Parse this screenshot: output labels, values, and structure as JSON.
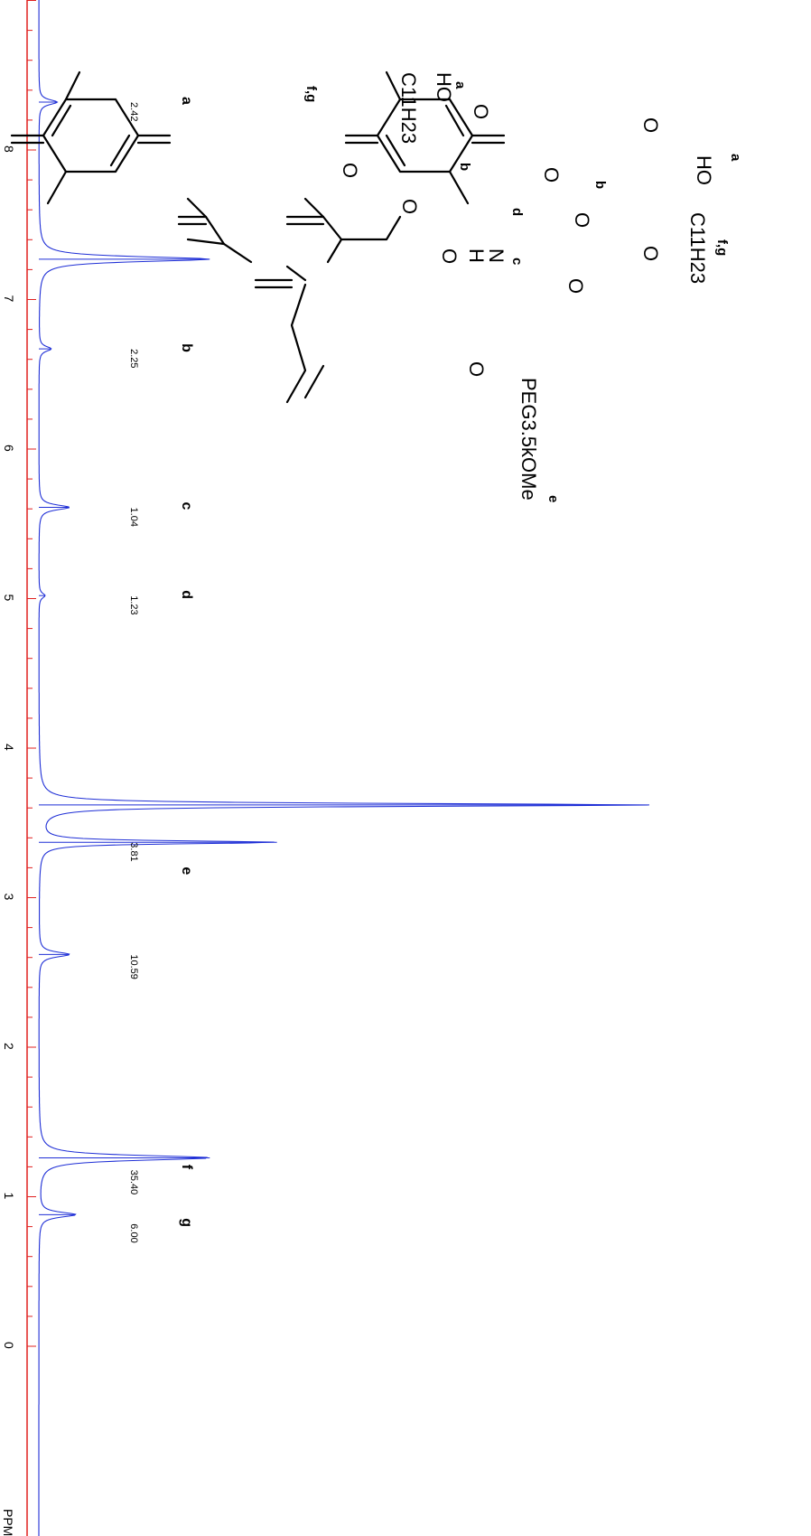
{
  "chart_data": {
    "type": "line",
    "orientation": "rotated-90-cw",
    "x_unit_label": "PPM",
    "xlim": [
      -0.3,
      9.6
    ],
    "x_ticks": [
      "0",
      "1",
      "2",
      "3",
      "4",
      "5",
      "6",
      "7",
      "8"
    ],
    "grid": false,
    "colors": {
      "spectrum": "#1f2fd6",
      "axis": "#e0201f",
      "text": "#000000"
    },
    "series": [
      {
        "peaks": [
          {
            "ppm": 8.32,
            "height": 0.03
          },
          {
            "ppm": 7.27,
            "height": 0.28
          },
          {
            "ppm": 6.67,
            "height": 0.02
          },
          {
            "ppm": 5.61,
            "height": 0.05
          },
          {
            "ppm": 5.02,
            "height": 0.01
          },
          {
            "ppm": 3.62,
            "height": 1.0
          },
          {
            "ppm": 3.37,
            "height": 0.39
          },
          {
            "ppm": 2.62,
            "height": 0.05
          },
          {
            "ppm": 1.26,
            "height": 0.28
          },
          {
            "ppm": 0.88,
            "height": 0.06
          }
        ]
      }
    ],
    "integrals": [
      {
        "ppm": 8.32,
        "value": "2.42"
      },
      {
        "ppm": 6.67,
        "value": "2.25"
      },
      {
        "ppm": 5.61,
        "value": "1.04"
      },
      {
        "ppm": 5.02,
        "value": "1.23"
      },
      {
        "ppm": 3.37,
        "value": "3.81"
      },
      {
        "ppm": 2.62,
        "value": "10.59"
      },
      {
        "ppm": 1.18,
        "value": "35.40"
      },
      {
        "ppm": 0.82,
        "value": "6.00"
      }
    ],
    "peak_assignments": [
      {
        "ppm": 8.32,
        "label": "a"
      },
      {
        "ppm": 6.67,
        "label": "b"
      },
      {
        "ppm": 5.61,
        "label": "c"
      },
      {
        "ppm": 5.02,
        "label": "d"
      },
      {
        "ppm": 3.17,
        "label": "e"
      },
      {
        "ppm": 1.18,
        "label": "f"
      },
      {
        "ppm": 0.82,
        "label": "g"
      }
    ]
  },
  "structure": {
    "atoms": [
      "O",
      "O",
      "O",
      "O",
      "O",
      "O",
      "O",
      "O",
      "O",
      "O",
      "HO",
      "HO",
      "N",
      "H"
    ],
    "groups": [
      "C11H23",
      "C11H23",
      "PEG3.5kOMe"
    ],
    "labels": [
      "a",
      "a",
      "b",
      "b",
      "c",
      "d",
      "e",
      "f,g",
      "f,g"
    ]
  }
}
